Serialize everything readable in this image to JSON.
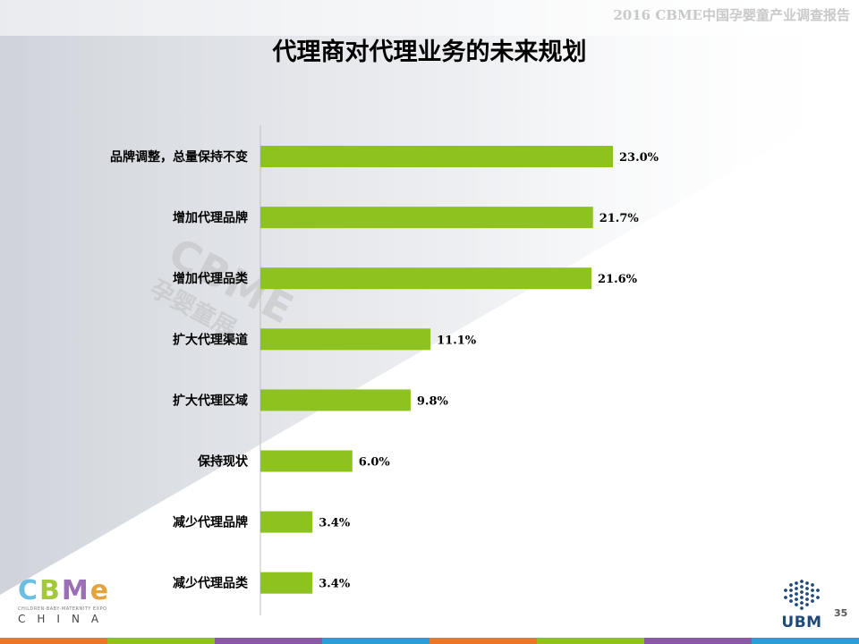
{
  "header": {
    "report_title": "2016 CBME中国孕婴童产业调查报告",
    "page_title": "代理商对代理业务的未来规划"
  },
  "watermark": {
    "logo": "CBME",
    "sub": "孕婴童展"
  },
  "chart_data": {
    "type": "bar",
    "orientation": "horizontal",
    "categories": [
      "品牌调整，总量保持不变",
      "增加代理品牌",
      "增加代理品类",
      "扩大代理渠道",
      "扩大代理区域",
      "保持现状",
      "减少代理品牌",
      "减少代理品类"
    ],
    "values": [
      23.0,
      21.7,
      21.6,
      11.1,
      9.8,
      6.0,
      3.4,
      3.4
    ],
    "value_labels": [
      "23.0%",
      "21.7%",
      "21.6%",
      "11.1%",
      "9.8%",
      "6.0%",
      "3.4%",
      "3.4%"
    ],
    "bar_color": "#8dc21f",
    "axis_color": "#bfbfbf",
    "xlim": [
      0,
      23.0
    ],
    "title": "",
    "xlabel": "",
    "ylabel": "",
    "grid": false,
    "legend": "none"
  },
  "footer": {
    "cbme_letters": [
      "C",
      "B",
      "M",
      "e"
    ],
    "cbme_colors": [
      "#6bbfe0",
      "#a3c93a",
      "#9b6fb5",
      "#e6a23c"
    ],
    "cbme_tagline": "CHILDREN·BABY·MATERNITY EXPO",
    "cbme_country": "CHINA",
    "ubm_text": "UBM",
    "page_number": "35",
    "stripe_colors": [
      "#e8772e",
      "#8dc21f",
      "#8a5aa5",
      "#2f9ad6",
      "#e8772e",
      "#8dc21f",
      "#8a5aa5",
      "#2f9ad6"
    ]
  }
}
